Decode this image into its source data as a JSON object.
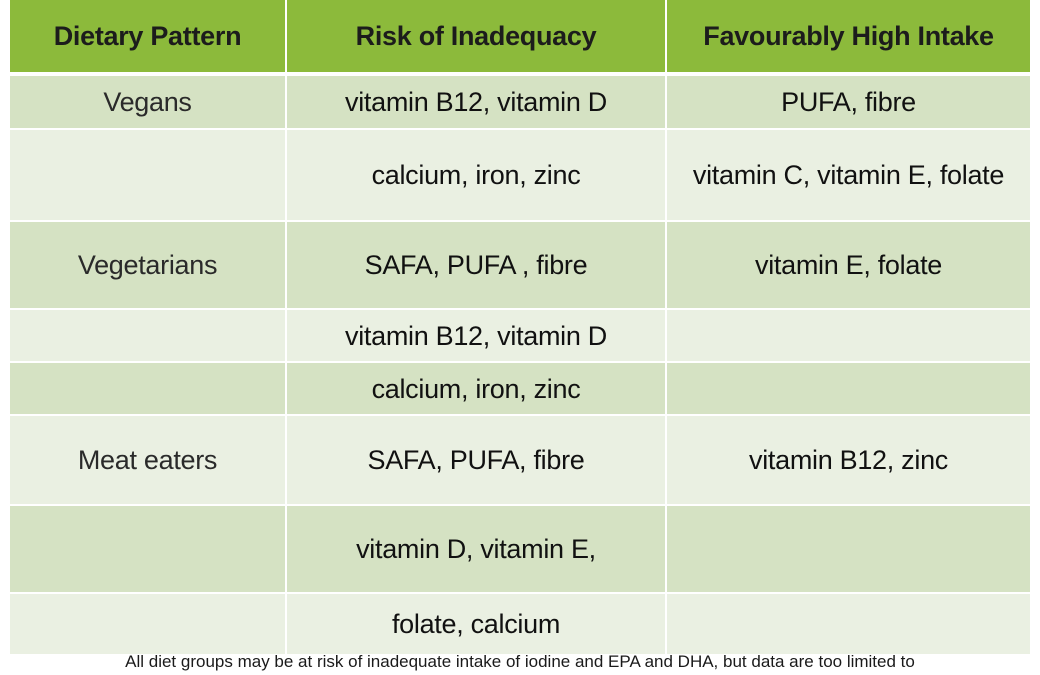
{
  "table": {
    "headers": [
      "Dietary Pattern",
      "Risk of Inadequacy",
      "Favourably High Intake"
    ],
    "rows": [
      [
        "Vegans",
        "vitamin B12, vitamin D",
        "PUFA, fibre"
      ],
      [
        "",
        "calcium, iron, zinc",
        "vitamin C, vitamin E, folate"
      ],
      [
        "Vegetarians",
        "SAFA, PUFA , fibre",
        "vitamin E, folate"
      ],
      [
        "",
        "vitamin B12, vitamin D",
        ""
      ],
      [
        "",
        "calcium, iron, zinc",
        ""
      ],
      [
        "Meat eaters",
        "SAFA, PUFA, fibre",
        "vitamin B12, zinc"
      ],
      [
        "",
        "vitamin D, vitamin E,",
        ""
      ],
      [
        "",
        "folate, calcium",
        ""
      ]
    ]
  },
  "footnote": "All diet groups may be at risk of inadequate intake of iodine and EPA and DHA, but data are too limited to",
  "colors": {
    "header_bg": "#8cba3b",
    "row_dark": "#d5e2c3",
    "row_light": "#eaf0e2"
  }
}
